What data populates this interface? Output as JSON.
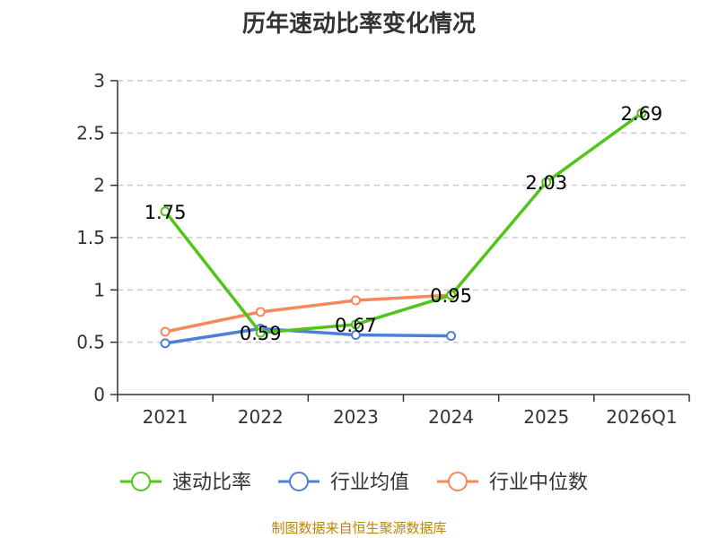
{
  "title": "历年速动比率变化情况",
  "source": "制图数据来自恒生聚源数据库",
  "chart_data": {
    "type": "line",
    "title": "历年速动比率变化情况",
    "categories": [
      "2021",
      "2022",
      "2023",
      "2024",
      "2025",
      "2026Q1"
    ],
    "ylim": [
      0,
      3
    ],
    "yticks": [
      "0",
      "0.5",
      "1",
      "1.5",
      "2",
      "2.5",
      "3"
    ],
    "grid": true,
    "legend_position": "bottom",
    "series": [
      {
        "name": "速动比率",
        "color": "#52c41a",
        "values": [
          1.75,
          0.59,
          0.67,
          0.95,
          2.03,
          2.69
        ],
        "labels": [
          "1.75",
          "0.59",
          "0.67",
          "0.95",
          "2.03",
          "2.69"
        ]
      },
      {
        "name": "行业均值",
        "color": "#4e7fd6",
        "values": [
          0.49,
          0.63,
          0.57,
          0.56,
          null,
          null
        ]
      },
      {
        "name": "行业中位数",
        "color": "#f5895a",
        "values": [
          0.6,
          0.79,
          0.9,
          0.95,
          null,
          null
        ]
      }
    ]
  }
}
